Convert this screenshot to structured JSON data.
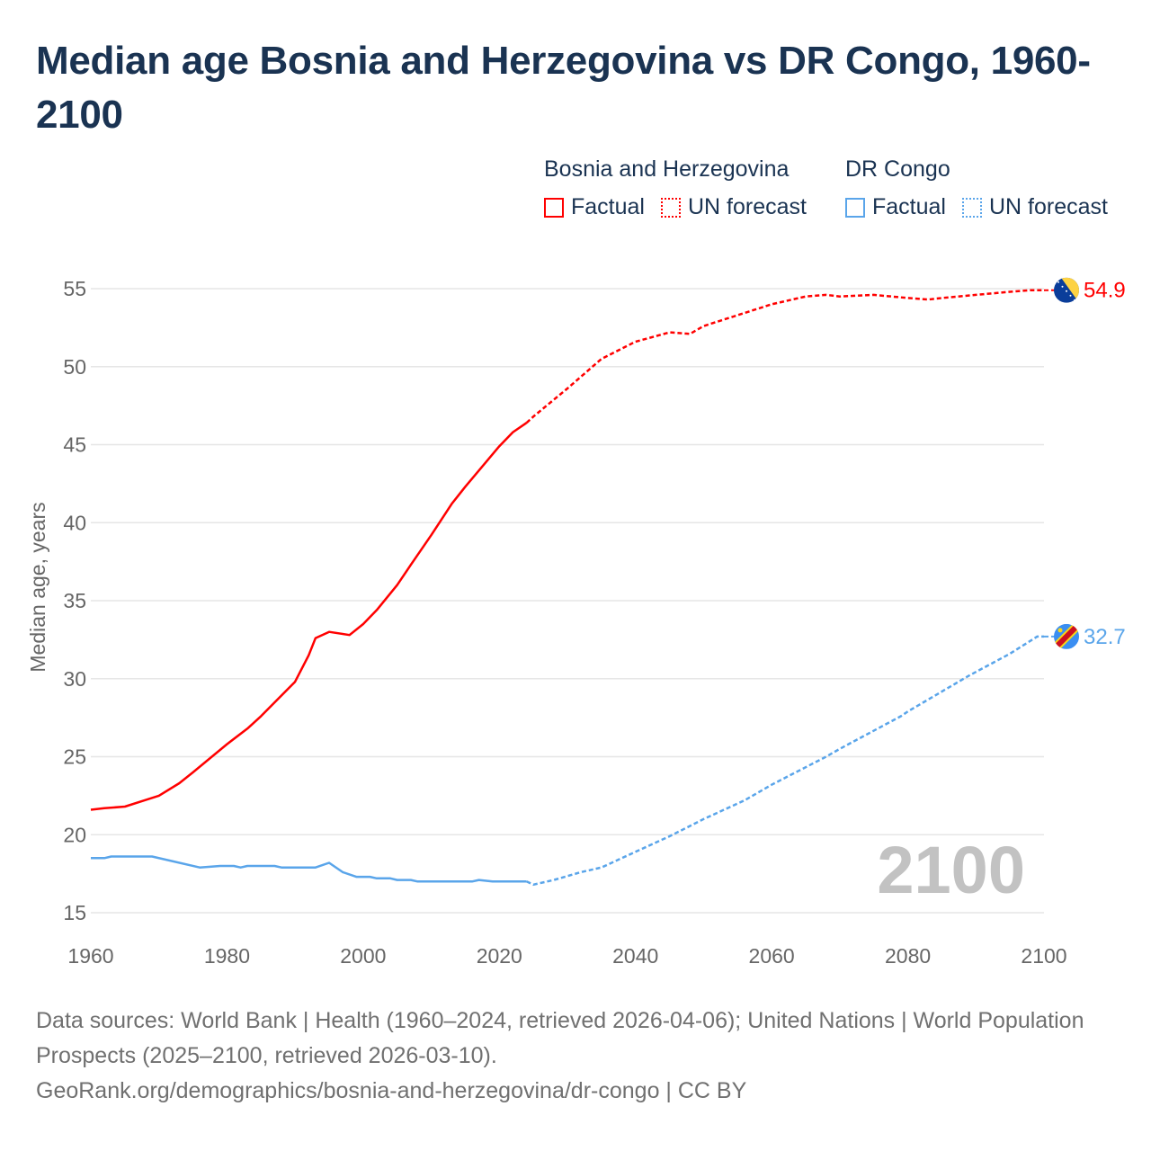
{
  "title": "Median age Bosnia and Herzegovina vs DR Congo, 1960-2100",
  "legend": {
    "groups": [
      {
        "name": "Bosnia and Herzegovina",
        "color": "#ff0000",
        "items": [
          "Factual",
          "UN forecast"
        ]
      },
      {
        "name": "DR Congo",
        "color": "#5aa5ea",
        "items": [
          "Factual",
          "UN forecast"
        ]
      }
    ]
  },
  "footer": {
    "line1": "Data sources: World Bank | Health (1960–2024, retrieved 2026-04-06); United Nations | World Population Prospects (2025–2100, retrieved 2026-03-10).",
    "line2": "GeoRank.org/demographics/bosnia-and-herzegovina/dr-congo | CC BY"
  },
  "chart_data": {
    "type": "line",
    "title": "Median age Bosnia and Herzegovina vs DR Congo, 1960-2100",
    "xlabel": "",
    "ylabel": "Median age, years",
    "xlim": [
      1960,
      2100
    ],
    "ylim": [
      15,
      55
    ],
    "xticks": [
      "1960",
      "1980",
      "2000",
      "2020",
      "2040",
      "2060",
      "2080",
      "2100"
    ],
    "yticks": [
      "15",
      "20",
      "25",
      "30",
      "35",
      "40",
      "45",
      "50",
      "55"
    ],
    "grid": true,
    "year_watermark": "2100",
    "series": [
      {
        "name": "Bosnia and Herzegovina",
        "color": "#ff0000",
        "end_label": "54.9",
        "factual": {
          "x": [
            1960,
            1962,
            1965,
            1970,
            1973,
            1975,
            1980,
            1983,
            1985,
            1990,
            1992,
            1993,
            1995,
            1998,
            2000,
            2002,
            2005,
            2007,
            2010,
            2013,
            2015,
            2020,
            2022,
            2024
          ],
          "y": [
            21.6,
            21.7,
            21.8,
            22.5,
            23.3,
            24.0,
            25.8,
            26.8,
            27.6,
            29.8,
            31.5,
            32.6,
            33.0,
            32.8,
            33.5,
            34.4,
            36.0,
            37.3,
            39.2,
            41.2,
            42.3,
            44.9,
            45.8,
            46.4
          ]
        },
        "forecast": {
          "x": [
            2025,
            2030,
            2035,
            2040,
            2045,
            2048,
            2050,
            2055,
            2060,
            2065,
            2068,
            2070,
            2075,
            2080,
            2083,
            2085,
            2090,
            2095,
            2098,
            2100
          ],
          "y": [
            46.8,
            48.6,
            50.5,
            51.6,
            52.2,
            52.1,
            52.6,
            53.3,
            54.0,
            54.5,
            54.6,
            54.5,
            54.6,
            54.4,
            54.3,
            54.4,
            54.6,
            54.8,
            54.9,
            54.9
          ]
        }
      },
      {
        "name": "DR Congo",
        "color": "#5aa5ea",
        "end_label": "32.7",
        "factual": {
          "x": [
            1960,
            1962,
            1963,
            1969,
            1976,
            1979,
            1981,
            1982,
            1983,
            1987,
            1988,
            1993,
            1995,
            1997,
            1999,
            2001,
            2002,
            2004,
            2005,
            2007,
            2008,
            2016,
            2017,
            2019,
            2024
          ],
          "y": [
            18.5,
            18.5,
            18.6,
            18.6,
            17.9,
            18.0,
            18.0,
            17.9,
            18.0,
            18.0,
            17.9,
            17.9,
            18.2,
            17.6,
            17.3,
            17.3,
            17.2,
            17.2,
            17.1,
            17.1,
            17.0,
            17.0,
            17.1,
            17.0,
            17.0
          ]
        },
        "forecast": {
          "x": [
            2025,
            2028,
            2032,
            2035,
            2040,
            2045,
            2050,
            2056,
            2060,
            2068,
            2070,
            2079,
            2080,
            2089,
            2095,
            2099,
            2100
          ],
          "y": [
            16.8,
            17.1,
            17.6,
            17.9,
            18.9,
            19.9,
            21.0,
            22.2,
            23.2,
            25.0,
            25.5,
            27.6,
            27.9,
            30.2,
            31.6,
            32.7,
            32.7
          ]
        }
      }
    ]
  }
}
